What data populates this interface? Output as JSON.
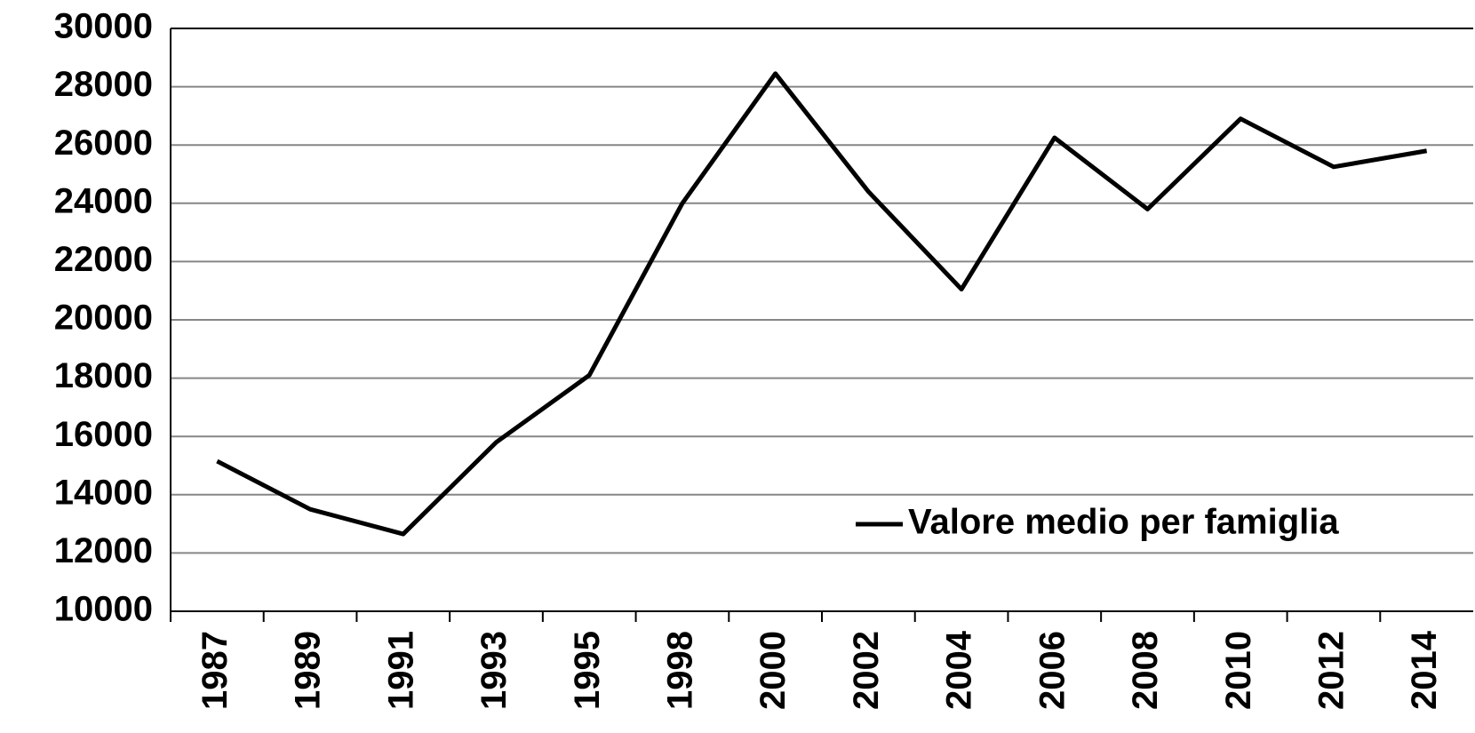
{
  "chart_data": {
    "type": "line",
    "categories": [
      "1987",
      "1989",
      "1991",
      "1993",
      "1995",
      "1998",
      "2000",
      "2002",
      "2004",
      "2006",
      "2008",
      "2010",
      "2012",
      "2014"
    ],
    "series": [
      {
        "name": "Valore medio per famiglia",
        "color": "#000000",
        "values": [
          15150,
          13500,
          12650,
          15800,
          18100,
          24000,
          28450,
          24400,
          21050,
          26250,
          23800,
          26900,
          25250,
          25800
        ]
      }
    ],
    "ylim": [
      10000,
      30000
    ],
    "yticks": [
      10000,
      12000,
      14000,
      16000,
      18000,
      20000,
      22000,
      24000,
      26000,
      28000,
      30000
    ],
    "grid": true,
    "legend": "lower right"
  }
}
